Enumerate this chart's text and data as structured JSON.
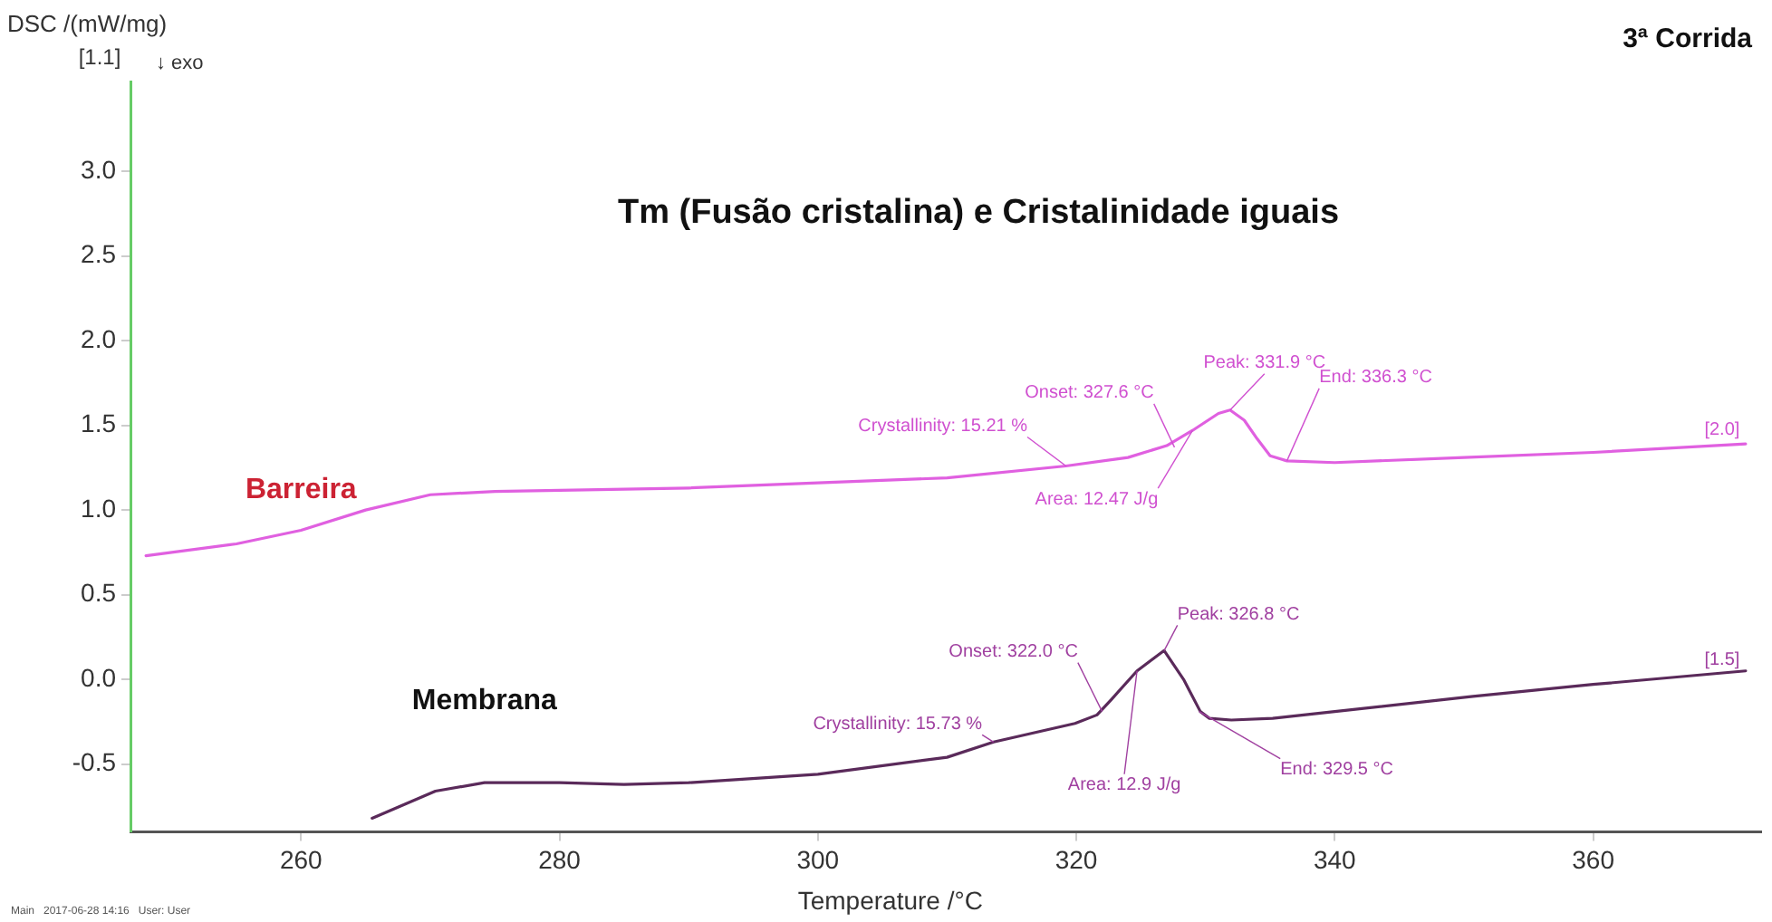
{
  "chart_data": {
    "type": "line",
    "title": "Tm (Fusão cristalina) e Cristalinidade iguais",
    "xlabel": "Temperature /°C",
    "ylabel": "DSC /(mW/mg)",
    "series": [
      {
        "name": "Barreira",
        "color": "#e060e0",
        "x": [
          248,
          255,
          260,
          265,
          270,
          275,
          290,
          300,
          310,
          319.2,
          324,
          327,
          329,
          331,
          331.9,
          333,
          334,
          335,
          336.3,
          340,
          350,
          360,
          371.8
        ],
        "values": [
          0.73,
          0.8,
          0.88,
          1.0,
          1.09,
          1.11,
          1.13,
          1.16,
          1.19,
          1.26,
          1.31,
          1.38,
          1.47,
          1.57,
          1.59,
          1.53,
          1.42,
          1.32,
          1.29,
          1.28,
          1.31,
          1.34,
          1.39
        ]
      },
      {
        "name": "Membrana",
        "color": "#5a2a5a",
        "x": [
          265.5,
          270.4,
          274.2,
          280,
          285,
          290,
          300,
          310,
          313.6,
          319.9,
          321.6,
          322.7,
          324.7,
          326.8,
          328.3,
          329.6,
          330.3,
          332,
          335.2,
          340,
          350.7,
          360,
          371.8
        ],
        "values": [
          -0.82,
          -0.66,
          -0.61,
          -0.61,
          -0.62,
          -0.61,
          -0.56,
          -0.46,
          -0.37,
          -0.26,
          -0.21,
          -0.12,
          0.05,
          0.17,
          0.0,
          -0.19,
          -0.23,
          -0.24,
          -0.23,
          -0.19,
          -0.1,
          -0.03,
          0.05
        ]
      }
    ],
    "xlim": [
      246.8,
      373
    ],
    "xticks": [
      260,
      280,
      300,
      320,
      340,
      360
    ],
    "ylim": [
      -0.9,
      3.53
    ],
    "yticks": [
      {
        "value": -0.5,
        "label": "-0.5"
      },
      {
        "value": 0,
        "label": "0.0"
      },
      {
        "value": 0.5,
        "label": "0.5"
      },
      {
        "value": 1,
        "label": "1.0"
      },
      {
        "value": 1.5,
        "label": "1.5"
      },
      {
        "value": 2,
        "label": "2.0"
      },
      {
        "value": 2.5,
        "label": "2.5"
      },
      {
        "value": 3,
        "label": "3.0"
      }
    ],
    "grid": false,
    "legend": false,
    "marker": "none",
    "line_style": "solid",
    "annotations": [
      "3ª Corrida",
      "[1.1]",
      "↓ exo",
      "Main   2017-06-28 14:16   User: User",
      {
        "text": "Crystallinity: 15.21 %",
        "x": 319.2,
        "y": 1.26
      },
      {
        "text": "Onset: 327.6 °C",
        "x": 327.6,
        "y": 1.37
      },
      {
        "text": "Peak: 331.9 °C",
        "x": 331.9,
        "y": 1.59
      },
      {
        "text": "End: 336.3 °C",
        "x": 336.3,
        "y": 1.29
      },
      {
        "text": "Area: 12.47 J/g",
        "x": 329,
        "y": 1.47
      },
      {
        "text": "[2.0]",
        "x": 371.8,
        "y": 1.39
      },
      {
        "text": "Crystallinity: 15.73 %",
        "x": 313.6,
        "y": -0.37
      },
      {
        "text": "Onset: 322.0 °C",
        "x": 322.0,
        "y": -0.19
      },
      {
        "text": "Peak: 326.8 °C",
        "x": 326.8,
        "y": 0.17
      },
      {
        "text": "End: 329.5 °C",
        "x": 329.5,
        "y": -0.19
      },
      {
        "text": "Area: 12.9 J/g",
        "x": 324.7,
        "y": 0.05
      },
      {
        "text": "[1.5]",
        "x": 371.8,
        "y": 0.05
      }
    ]
  }
}
